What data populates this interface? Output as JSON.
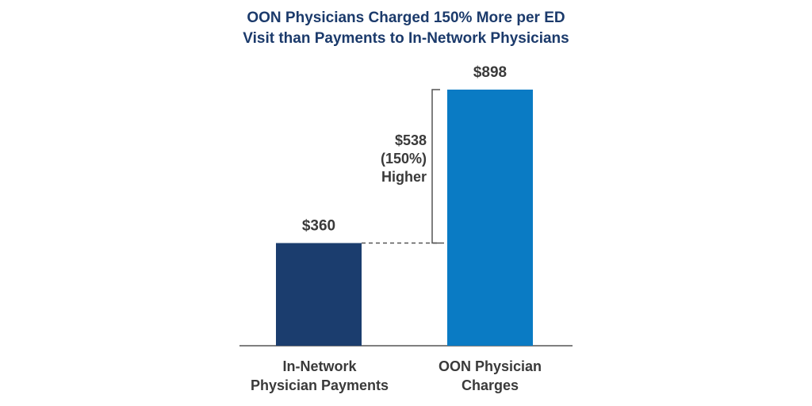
{
  "chart_data": {
    "type": "bar",
    "title_lines": [
      "OON Physicians Charged 150% More per ED",
      "Visit than Payments to In-Network Physicians"
    ],
    "categories": [
      [
        "In-Network",
        "Physician Payments"
      ],
      [
        "OON Physician",
        "Charges"
      ]
    ],
    "values": [
      360,
      898
    ],
    "value_labels": [
      "$360",
      "$898"
    ],
    "colors": [
      "#1b3d6e",
      "#0a7bc4"
    ],
    "annotation": {
      "lines": [
        "$538",
        "(150%)",
        "Higher"
      ]
    },
    "ylim": [
      0,
      898
    ],
    "grid": false,
    "legend": false
  }
}
